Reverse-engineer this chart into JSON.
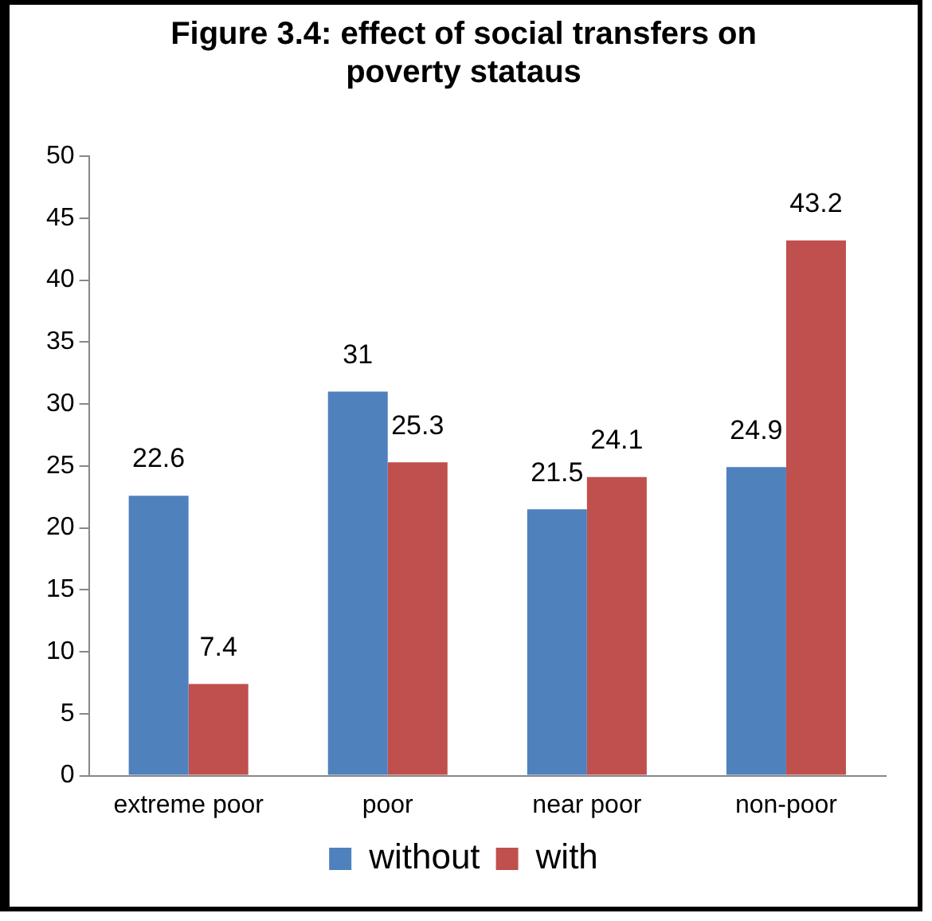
{
  "chart_data": {
    "type": "bar",
    "title": "Figure 3.4: effect of social transfers on poverty stataus",
    "categories": [
      "extreme poor",
      "poor",
      "near poor",
      "non-poor"
    ],
    "series": [
      {
        "name": "without",
        "color": "#4f81bd",
        "values": [
          22.6,
          31,
          21.5,
          24.9
        ]
      },
      {
        "name": "with",
        "color": "#c0504d",
        "values": [
          7.4,
          25.3,
          24.1,
          43.2
        ]
      }
    ],
    "ylim": [
      0,
      50
    ],
    "yticks": [
      0,
      5,
      10,
      15,
      20,
      25,
      30,
      35,
      40,
      45,
      50
    ],
    "grid": false,
    "legend": "bottom",
    "data_labels": true
  }
}
